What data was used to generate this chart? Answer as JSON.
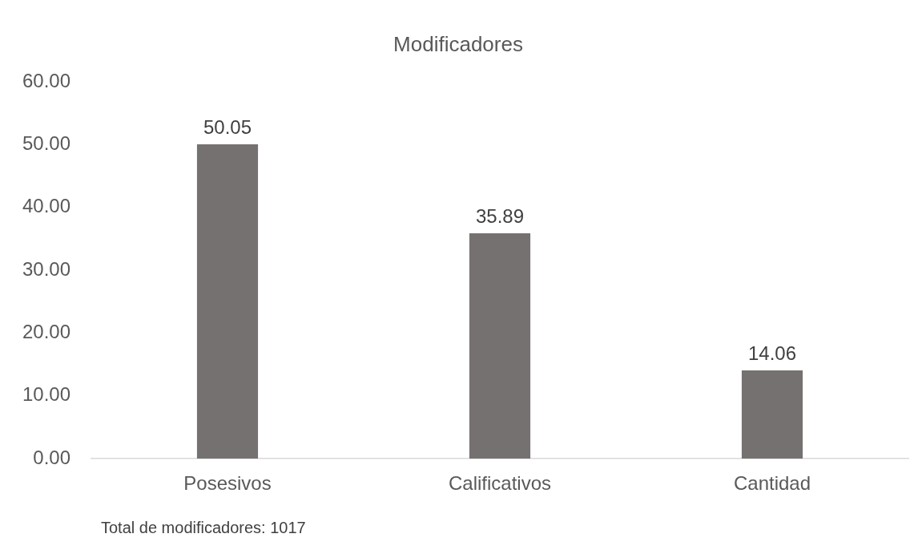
{
  "chart_data": {
    "type": "bar",
    "title": "Modificadores",
    "categories": [
      "Posesivos",
      "Calificativos",
      "Cantidad"
    ],
    "values": [
      50.05,
      35.89,
      14.06
    ],
    "color": "#767171",
    "ylim": [
      0,
      60
    ],
    "yticks": [
      {
        "value": 0,
        "label": "0.00"
      },
      {
        "value": 10,
        "label": "10.00"
      },
      {
        "value": 20,
        "label": "20.00"
      },
      {
        "value": 30,
        "label": "30.00"
      },
      {
        "value": 40,
        "label": "40.00"
      },
      {
        "value": 50,
        "label": "50.00"
      },
      {
        "value": 60,
        "label": "60.00"
      }
    ],
    "grid": false,
    "legend": false,
    "data_labels": true,
    "annotations": [
      "Total de modificadores: 1017"
    ]
  }
}
